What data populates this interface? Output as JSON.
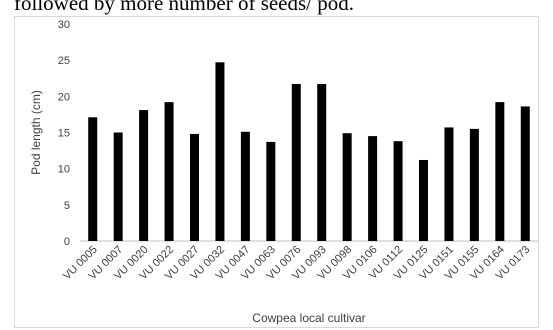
{
  "caption": {
    "text": "followed by more number of seeds/ pod."
  },
  "chart_data": {
    "type": "bar",
    "xlabel": "Cowpea local cultivar",
    "ylabel": "Pod length (cm)",
    "ylim": [
      0,
      30
    ],
    "yticks": [
      0,
      5,
      10,
      15,
      20,
      25,
      30
    ],
    "grid": false,
    "bar_color": "#000000",
    "categories": [
      "VU 0005",
      "VU 0007",
      "VU 0020",
      "VU 0022",
      "VU 0027",
      "VU 0032",
      "VU 0047",
      "VU 0063",
      "VU 0076",
      "VU 0093",
      "VU 0098",
      "VU 0106",
      "VU 0112",
      "VU 0125",
      "VU 0151",
      "VU 0155",
      "VU 0164",
      "VU 0173"
    ],
    "values": [
      17.1,
      15.0,
      18.1,
      19.2,
      14.8,
      24.7,
      15.1,
      13.7,
      21.7,
      21.7,
      14.9,
      14.5,
      13.8,
      11.2,
      15.7,
      15.5,
      19.2,
      18.6
    ]
  }
}
